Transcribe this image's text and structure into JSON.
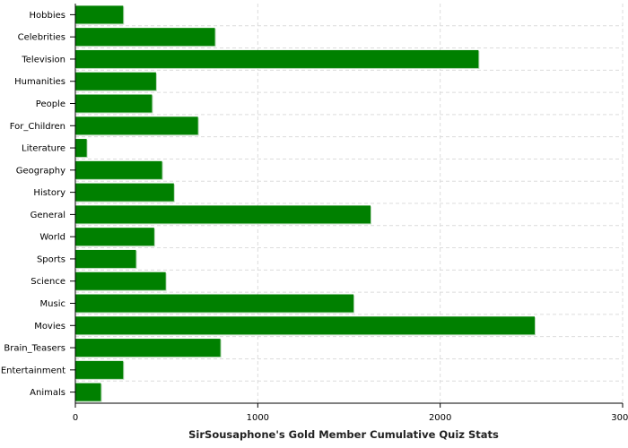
{
  "chart_data": {
    "type": "bar",
    "orientation": "horizontal",
    "categories": [
      "Hobbies",
      "Celebrities",
      "Television",
      "Humanities",
      "People",
      "For_Children",
      "Literature",
      "Geography",
      "History",
      "General",
      "World",
      "Sports",
      "Science",
      "Music",
      "Movies",
      "Brain_Teasers",
      "Entertainment",
      "Animals"
    ],
    "values": [
      262,
      765,
      2210,
      442,
      420,
      672,
      62,
      475,
      540,
      1618,
      432,
      332,
      495,
      1525,
      2518,
      795,
      262,
      140
    ],
    "xlabel": "SirSousaphone's Gold Member Cumulative Quiz Stats",
    "ylabel": "",
    "xlim": [
      0,
      3000
    ],
    "xticks": [
      "0",
      "1000",
      "2000",
      "3000"
    ],
    "grid": true,
    "bar_color": "#008000"
  }
}
